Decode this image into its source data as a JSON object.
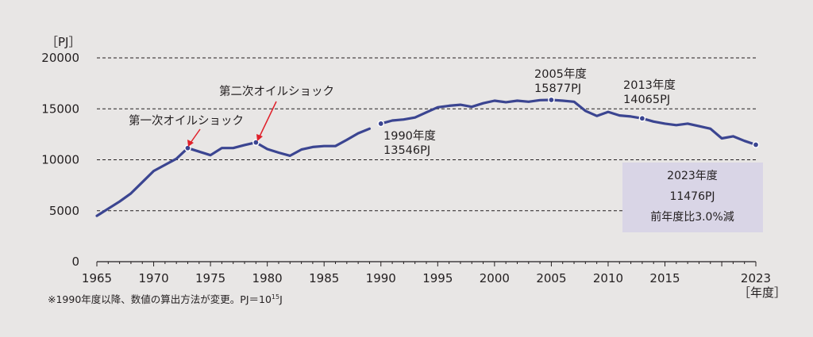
{
  "chart_data": {
    "type": "line",
    "y_unit_label": "［PJ］",
    "x_unit_label": "［年度］",
    "ylim": [
      0,
      20000
    ],
    "y_ticks": [
      0,
      5000,
      10000,
      15000,
      20000
    ],
    "y_tick_labels": [
      "0",
      "5000",
      "10000",
      "15000",
      "20000"
    ],
    "xlim": [
      1965,
      2023
    ],
    "x_ticks": [
      1965,
      1970,
      1975,
      1980,
      1985,
      1990,
      1995,
      2000,
      2005,
      2010,
      2015,
      2023
    ],
    "x_tick_labels": [
      "1965",
      "1970",
      "1975",
      "1980",
      "1985",
      "1990",
      "1995",
      "2000",
      "2005",
      "2010",
      "2015",
      "2023"
    ],
    "grid": "horizontal dashed",
    "line_color": "#3b4591",
    "x": [
      1965,
      1966,
      1967,
      1968,
      1969,
      1970,
      1971,
      1972,
      1973,
      1974,
      1975,
      1976,
      1977,
      1978,
      1979,
      1980,
      1981,
      1982,
      1983,
      1984,
      1985,
      1986,
      1987,
      1988,
      1989,
      1990,
      1991,
      1992,
      1993,
      1994,
      1995,
      1996,
      1997,
      1998,
      1999,
      2000,
      2001,
      2002,
      2003,
      2004,
      2005,
      2006,
      2007,
      2008,
      2009,
      2010,
      2011,
      2012,
      2013,
      2014,
      2015,
      2016,
      2017,
      2018,
      2019,
      2020,
      2021,
      2022,
      2023
    ],
    "values": [
      4500,
      5200,
      5900,
      6700,
      7800,
      8900,
      9500,
      10100,
      11150,
      10800,
      10450,
      11150,
      11150,
      11450,
      11700,
      11050,
      10700,
      10400,
      11000,
      11250,
      11350,
      11350,
      11950,
      12600,
      13050,
      13546,
      13850,
      13950,
      14150,
      14650,
      15150,
      15300,
      15400,
      15200,
      15550,
      15800,
      15650,
      15800,
      15700,
      15850,
      15877,
      15800,
      15700,
      14800,
      14300,
      14700,
      14350,
      14250,
      14065,
      13750,
      13550,
      13400,
      13550,
      13300,
      13050,
      12100,
      12300,
      11850,
      11476
    ],
    "markers": [
      1973,
      1979,
      1990,
      2005,
      2013,
      2023
    ],
    "annotations": [
      {
        "text": "第一次オイルショック",
        "year": 1973
      },
      {
        "text": "第二次オイルショック",
        "year": 1979
      },
      {
        "line1": "1990年度",
        "line2": "13546PJ",
        "year": 1990
      },
      {
        "line1": "2005年度",
        "line2": "15877PJ",
        "year": 2005
      },
      {
        "line1": "2013年度",
        "line2": "14065PJ",
        "year": 2013
      }
    ],
    "summary_box": {
      "line1": "2023年度",
      "line2": "11476PJ",
      "line3": "前年度比3.0%減",
      "color": "#d9d5e6"
    },
    "footnote": {
      "main": "※1990年度以降、数値の算出方法が変更。PJ＝10",
      "sup": "15",
      "tail": "J"
    },
    "arrow_color": "#e0202a"
  }
}
